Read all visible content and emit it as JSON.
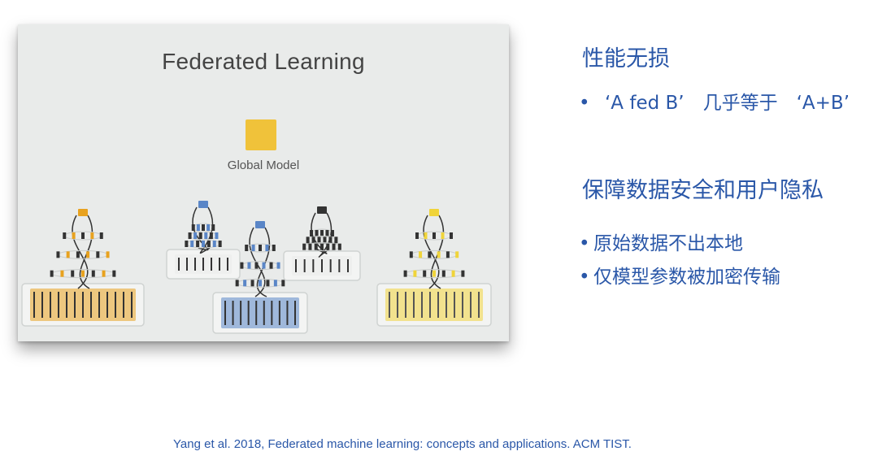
{
  "figure": {
    "title": "Federated Learning",
    "global_model_label": "Global Model",
    "colors": {
      "background": "#e9ebea",
      "orange": "#e8a21f",
      "blue": "#5a86c7",
      "yellow": "#f0d43a",
      "dark": "#333333",
      "outline": "#d0d3d2"
    }
  },
  "right": {
    "heading1": "性能无损",
    "bullets1": [
      "‘A fed B’　几乎等于　‘A+B’"
    ],
    "heading2": "保障数据安全和用户隐私",
    "bullets2": [
      "原始数据不出本地",
      "仅模型参数被加密传输"
    ],
    "bullet_symbol": "•"
  },
  "citation": "Yang et al. 2018, Federated machine learning: concepts and applications. ACM TIST."
}
